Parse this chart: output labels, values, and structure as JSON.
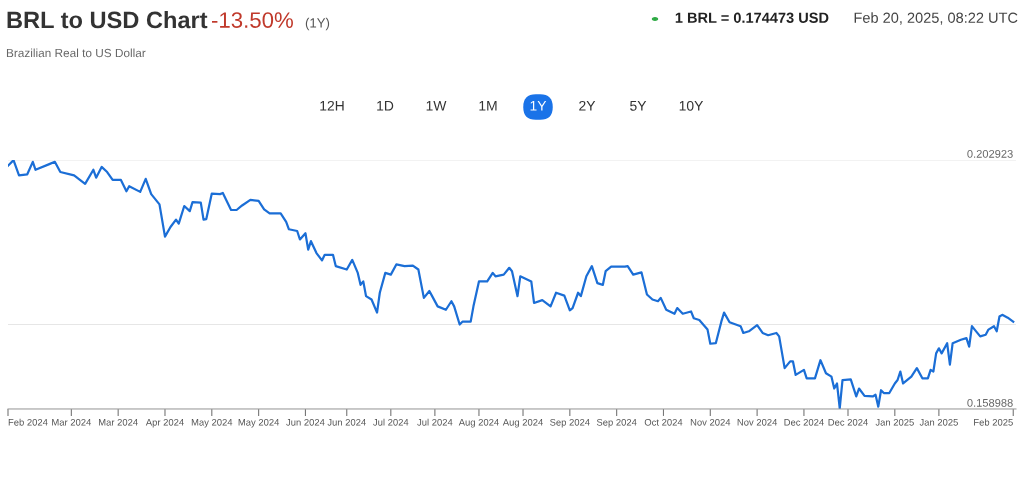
{
  "chart_data": {
    "type": "line",
    "title": "BRL to USD Chart",
    "subtitle": "Brazilian Real to US Dollar",
    "annotations": [
      "-13.50%",
      "(1Y)",
      "1 BRL = 0.174473 USD",
      "Feb 20, 2025, 08:22 UTC",
      "12H",
      "1D",
      "1W",
      "1M",
      "1Y",
      "2Y",
      "5Y",
      "10Y"
    ],
    "x": [
      "2024-02-20",
      "2024-02-22",
      "2024-02-24",
      "2024-02-27",
      "2024-02-29",
      "2024-03-01",
      "2024-03-06",
      "2024-03-08",
      "2024-03-10",
      "2024-03-15",
      "2024-03-19",
      "2024-03-22",
      "2024-03-23",
      "2024-03-25",
      "2024-03-27",
      "2024-03-29",
      "2024-04-01",
      "2024-04-03",
      "2024-04-04",
      "2024-04-08",
      "2024-04-10",
      "2024-04-12",
      "2024-04-15",
      "2024-04-17",
      "2024-04-19",
      "2024-04-21",
      "2024-04-22",
      "2024-04-24",
      "2024-04-26",
      "2024-04-27",
      "2024-04-30",
      "2024-05-01",
      "2024-05-02",
      "2024-05-04",
      "2024-05-07",
      "2024-05-08",
      "2024-05-11",
      "2024-05-13",
      "2024-05-15",
      "2024-05-18",
      "2024-05-21",
      "2024-05-23",
      "2024-05-25",
      "2024-05-29",
      "2024-05-31",
      "2024-06-01",
      "2024-06-04",
      "2024-06-05",
      "2024-06-07",
      "2024-06-08",
      "2024-06-09",
      "2024-06-11",
      "2024-06-13",
      "2024-06-14",
      "2024-06-17",
      "2024-06-18",
      "2024-06-22",
      "2024-06-24",
      "2024-06-26",
      "2024-06-27",
      "2024-06-28",
      "2024-06-29",
      "2024-07-01",
      "2024-07-03",
      "2024-07-04",
      "2024-07-06",
      "2024-07-08",
      "2024-07-10",
      "2024-07-13",
      "2024-07-16",
      "2024-07-18",
      "2024-07-20",
      "2024-07-22",
      "2024-07-23",
      "2024-07-25",
      "2024-07-28",
      "2024-07-30",
      "2024-07-31",
      "2024-08-02",
      "2024-08-03",
      "2024-08-06",
      "2024-08-07",
      "2024-08-09",
      "2024-08-12",
      "2024-08-14",
      "2024-08-15",
      "2024-08-18",
      "2024-08-20",
      "2024-08-21",
      "2024-08-23",
      "2024-08-24",
      "2024-08-28",
      "2024-08-29",
      "2024-09-01",
      "2024-09-04",
      "2024-09-06",
      "2024-09-09",
      "2024-09-11",
      "2024-09-12",
      "2024-09-14",
      "2024-09-15",
      "2024-09-17",
      "2024-09-19",
      "2024-09-21",
      "2024-09-23",
      "2024-09-24",
      "2024-09-26",
      "2024-10-01",
      "2024-10-02",
      "2024-10-04",
      "2024-10-07",
      "2024-10-09",
      "2024-10-11",
      "2024-10-13",
      "2024-10-14",
      "2024-10-16",
      "2024-10-19",
      "2024-10-20",
      "2024-10-22",
      "2024-10-25",
      "2024-10-26",
      "2024-10-28",
      "2024-10-31",
      "2024-11-01",
      "2024-11-03",
      "2024-11-05",
      "2024-11-06",
      "2024-11-08",
      "2024-11-12",
      "2024-11-13",
      "2024-11-15",
      "2024-11-18",
      "2024-11-20",
      "2024-11-22",
      "2024-11-25",
      "2024-11-26",
      "2024-11-28",
      "2024-11-30",
      "2024-12-01",
      "2024-12-02",
      "2024-12-05",
      "2024-12-06",
      "2024-12-09",
      "2024-12-11",
      "2024-12-13",
      "2024-12-15",
      "2024-12-16",
      "2024-12-17",
      "2024-12-18",
      "2024-12-19",
      "2024-12-22",
      "2024-12-24",
      "2024-12-25",
      "2024-12-27",
      "2024-12-30",
      "2024-12-31",
      "2025-01-01",
      "2025-01-02",
      "2025-01-03",
      "2025-01-05",
      "2025-01-07",
      "2025-01-08",
      "2025-01-09",
      "2025-01-10",
      "2025-01-13",
      "2025-01-15",
      "2025-01-17",
      "2025-01-19",
      "2025-01-20",
      "2025-01-21",
      "2025-01-22",
      "2025-01-23",
      "2025-01-24",
      "2025-01-26",
      "2025-01-27",
      "2025-01-28",
      "2025-01-31",
      "2025-02-02",
      "2025-02-03",
      "2025-02-04",
      "2025-02-05",
      "2025-02-07",
      "2025-02-09",
      "2025-02-10",
      "2025-02-12",
      "2025-02-13",
      "2025-02-14",
      "2025-02-15",
      "2025-02-17",
      "2025-02-19"
    ],
    "series": [
      {
        "color": "#1b6ed6",
        "values": [
          0.2019,
          0.2029,
          0.2002,
          0.2004,
          0.2026,
          0.2012,
          0.2022,
          0.2026,
          0.2008,
          0.2002,
          0.1987,
          0.2012,
          0.1998,
          0.2017,
          0.2008,
          0.1994,
          0.1994,
          0.1974,
          0.1983,
          0.1973,
          0.1996,
          0.1969,
          0.1951,
          0.1894,
          0.1911,
          0.1924,
          0.1917,
          0.1948,
          0.1939,
          0.1955,
          0.1954,
          0.1924,
          0.1925,
          0.197,
          0.1969,
          0.1971,
          0.1941,
          0.1941,
          0.1949,
          0.1959,
          0.1957,
          0.1942,
          0.1935,
          0.1935,
          0.192,
          0.1907,
          0.1904,
          0.1889,
          0.19,
          0.1871,
          0.1886,
          0.1865,
          0.1852,
          0.1862,
          0.1862,
          0.1842,
          0.1836,
          0.1853,
          0.183,
          0.1809,
          0.1815,
          0.1789,
          0.1783,
          0.176,
          0.1795,
          0.183,
          0.1827,
          0.1845,
          0.1842,
          0.1843,
          0.1836,
          0.1786,
          0.1798,
          0.1789,
          0.1771,
          0.1765,
          0.178,
          0.1771,
          0.1739,
          0.1744,
          0.1744,
          0.1771,
          0.1815,
          0.1815,
          0.183,
          0.1824,
          0.1827,
          0.1839,
          0.1833,
          0.1789,
          0.1824,
          0.1815,
          0.1777,
          0.1782,
          0.1771,
          0.1795,
          0.179,
          0.1764,
          0.1768,
          0.1795,
          0.1789,
          0.1824,
          0.1842,
          0.1812,
          0.1809,
          0.1833,
          0.1841,
          0.1841,
          0.1842,
          0.1827,
          0.1831,
          0.1792,
          0.1783,
          0.178,
          0.1786,
          0.1765,
          0.1758,
          0.1768,
          0.1758,
          0.1762,
          0.175,
          0.1747,
          0.173,
          0.1705,
          0.1706,
          0.1744,
          0.176,
          0.1743,
          0.1736,
          0.1724,
          0.1727,
          0.1738,
          0.1724,
          0.172,
          0.1724,
          0.1718,
          0.1662,
          0.1674,
          0.1674,
          0.165,
          0.1659,
          0.1644,
          0.1644,
          0.1676,
          0.1653,
          0.1647,
          0.1626,
          0.1635,
          0.1591,
          0.1641,
          0.1642,
          0.1612,
          0.1626,
          0.1613,
          0.1612,
          0.1615,
          0.1594,
          0.1623,
          0.1618,
          0.1618,
          0.1635,
          0.1641,
          0.1656,
          0.1635,
          0.1647,
          0.1662,
          0.1644,
          0.1644,
          0.1659,
          0.1656,
          0.1688,
          0.1697,
          0.1688,
          0.1706,
          0.1668,
          0.1706,
          0.1712,
          0.1715,
          0.17,
          0.1736,
          0.173,
          0.1718,
          0.1721,
          0.173,
          0.1736,
          0.1727,
          0.1753,
          0.1756,
          0.1751,
          0.1744
        ]
      }
    ],
    "xlim": [
      "2024-02-20",
      "2025-02-20"
    ],
    "xticks": [
      {
        "value": "2024-02-20",
        "label": "Feb 2024"
      },
      {
        "value": "2024-03-14",
        "label": "Mar 2024"
      },
      {
        "value": "2024-03-31",
        "label": "Mar 2024"
      },
      {
        "value": "2024-04-17",
        "label": "Apr 2024"
      },
      {
        "value": "2024-05-04",
        "label": "May 2024"
      },
      {
        "value": "2024-05-21",
        "label": "May 2024"
      },
      {
        "value": "2024-06-07",
        "label": "Jun 2024"
      },
      {
        "value": "2024-06-22",
        "label": "Jun 2024"
      },
      {
        "value": "2024-07-08",
        "label": "Jul 2024"
      },
      {
        "value": "2024-07-24",
        "label": "Jul 2024"
      },
      {
        "value": "2024-08-09",
        "label": "Aug 2024"
      },
      {
        "value": "2024-08-25",
        "label": "Aug 2024"
      },
      {
        "value": "2024-09-11",
        "label": "Sep 2024"
      },
      {
        "value": "2024-09-28",
        "label": "Sep 2024"
      },
      {
        "value": "2024-10-15",
        "label": "Oct 2024"
      },
      {
        "value": "2024-11-01",
        "label": "Nov 2024"
      },
      {
        "value": "2024-11-18",
        "label": "Nov 2024"
      },
      {
        "value": "2024-12-05",
        "label": "Dec 2024"
      },
      {
        "value": "2024-12-21",
        "label": "Dec 2024"
      },
      {
        "value": "2025-01-07",
        "label": "Jan 2025"
      },
      {
        "value": "2025-01-23",
        "label": "Jan 2025"
      },
      {
        "value": "2025-02-19",
        "label": "Feb 2025"
      }
    ],
    "ylim": [
      0.158988,
      0.202923
    ],
    "yticks": [
      0.158988,
      {
        "value": 0.1739,
        "label": null
      },
      0.202923
    ],
    "grid": "y",
    "legend": false,
    "marker": "none",
    "line_style": "solid"
  }
}
